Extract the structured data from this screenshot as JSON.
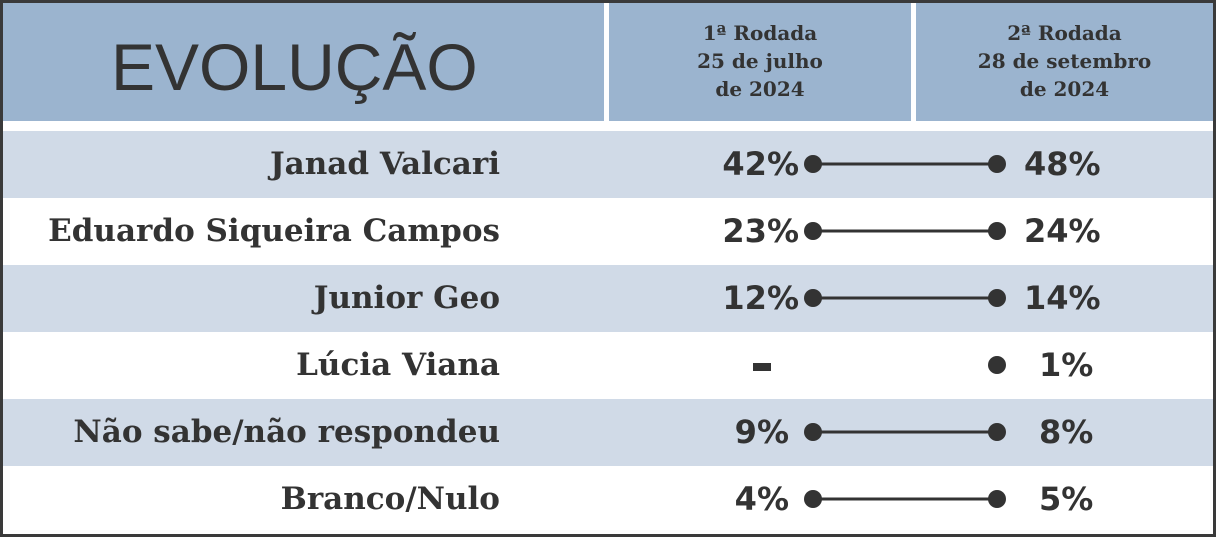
{
  "title": "EVOLUÇÃO",
  "columns": [
    {
      "lines": [
        "1ª Rodada",
        "25 de julho",
        "de 2024"
      ]
    },
    {
      "lines": [
        "2ª Rodada",
        "28 de setembro",
        "de 2024"
      ]
    }
  ],
  "colors": {
    "header": "#9bb4cf",
    "row_shade": "#d0dae7",
    "text": "#333333",
    "border": "#3a3a3a"
  },
  "chart_data": {
    "type": "table",
    "rows": [
      {
        "label": "Janad Valcari",
        "r1": "42%",
        "r2": "48%"
      },
      {
        "label": "Eduardo Siqueira Campos",
        "r1": "23%",
        "r2": "24%"
      },
      {
        "label": "Junior Geo",
        "r1": "12%",
        "r2": "14%"
      },
      {
        "label": "Lúcia Viana",
        "r1": "-",
        "r2": "1%"
      },
      {
        "label": "Não sabe/não respondeu",
        "r1": "9%",
        "r2": "8%"
      },
      {
        "label": "Branco/Nulo",
        "r1": "4%",
        "r2": "5%"
      }
    ]
  }
}
